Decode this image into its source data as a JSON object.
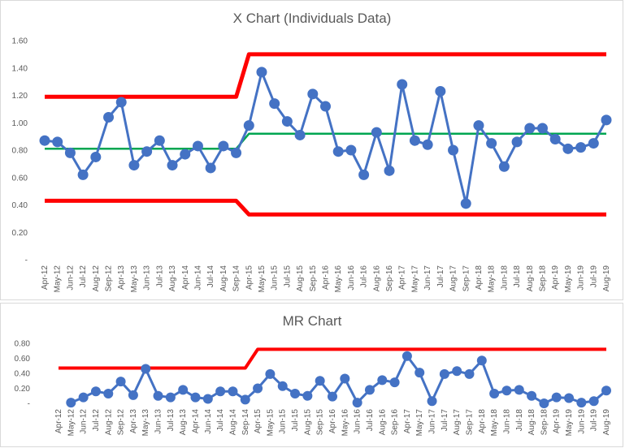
{
  "chart_data": [
    {
      "type": "line",
      "title": "X Chart (Individuals Data)",
      "xlabel": "",
      "ylabel": "",
      "ylim": [
        0,
        1.6
      ],
      "yticks": [
        "-",
        "0.20",
        "0.40",
        "0.60",
        "0.80",
        "1.00",
        "1.20",
        "1.40",
        "1.60"
      ],
      "categories": [
        "Apr-12",
        "May-12",
        "Jun-12",
        "Jul-12",
        "Aug-12",
        "Sep-12",
        "Apr-13",
        "May-13",
        "Jun-13",
        "Jul-13",
        "Aug-13",
        "Apr-14",
        "Jun-14",
        "Jul-14",
        "Aug-14",
        "Sep-14",
        "Apr-15",
        "May-15",
        "Jun-15",
        "Jul-15",
        "Aug-15",
        "Sep-15",
        "Apr-16",
        "May-16",
        "Jun-16",
        "Jul-16",
        "Aug-16",
        "Sep-16",
        "Apr-17",
        "May-17",
        "Jun-17",
        "Jul-17",
        "Aug-17",
        "Sep-17",
        "Apr-18",
        "May-18",
        "Jun-18",
        "Jul-18",
        "Aug-18",
        "Sep-18",
        "Apr-19",
        "May-19",
        "Jun-19",
        "Jul-19",
        "Aug-19"
      ],
      "series": [
        {
          "values": [
            0.87,
            0.86,
            0.78,
            0.62,
            0.75,
            1.04,
            1.15,
            0.69,
            0.79,
            0.87,
            0.69,
            0.77,
            0.83,
            0.67,
            0.83,
            0.78,
            0.98,
            1.37,
            1.14,
            1.01,
            0.91,
            1.21,
            1.12,
            0.79,
            0.8,
            0.62,
            0.93,
            0.65,
            1.28,
            0.87,
            0.84,
            1.23,
            0.8,
            0.41,
            0.98,
            0.85,
            0.68,
            0.86,
            0.96,
            0.96,
            0.88,
            0.81,
            0.82,
            0.85,
            1.02
          ],
          "color": "#4472c4"
        },
        {
          "values": [
            1.19,
            1.19,
            1.19,
            1.19,
            1.19,
            1.19,
            1.19,
            1.19,
            1.19,
            1.19,
            1.19,
            1.19,
            1.19,
            1.19,
            1.19,
            1.19,
            1.5,
            1.5,
            1.5,
            1.5,
            1.5,
            1.5,
            1.5,
            1.5,
            1.5,
            1.5,
            1.5,
            1.5,
            1.5,
            1.5,
            1.5,
            1.5,
            1.5,
            1.5,
            1.5,
            1.5,
            1.5,
            1.5,
            1.5,
            1.5,
            1.5,
            1.5,
            1.5,
            1.5,
            1.5
          ],
          "color": "#ff0000"
        },
        {
          "values": [
            0.81,
            0.81,
            0.81,
            0.81,
            0.81,
            0.81,
            0.81,
            0.81,
            0.81,
            0.81,
            0.81,
            0.81,
            0.81,
            0.81,
            0.81,
            0.81,
            0.92,
            0.92,
            0.92,
            0.92,
            0.92,
            0.92,
            0.92,
            0.92,
            0.92,
            0.92,
            0.92,
            0.92,
            0.92,
            0.92,
            0.92,
            0.92,
            0.92,
            0.92,
            0.92,
            0.92,
            0.92,
            0.92,
            0.92,
            0.92,
            0.92,
            0.92,
            0.92,
            0.92,
            0.92
          ],
          "color": "#00a651"
        },
        {
          "values": [
            0.43,
            0.43,
            0.43,
            0.43,
            0.43,
            0.43,
            0.43,
            0.43,
            0.43,
            0.43,
            0.43,
            0.43,
            0.43,
            0.43,
            0.43,
            0.43,
            0.33,
            0.33,
            0.33,
            0.33,
            0.33,
            0.33,
            0.33,
            0.33,
            0.33,
            0.33,
            0.33,
            0.33,
            0.33,
            0.33,
            0.33,
            0.33,
            0.33,
            0.33,
            0.33,
            0.33,
            0.33,
            0.33,
            0.33,
            0.33,
            0.33,
            0.33,
            0.33,
            0.33,
            0.33
          ],
          "color": "#ff0000"
        }
      ]
    },
    {
      "type": "line",
      "title": "MR Chart",
      "xlabel": "",
      "ylabel": "",
      "ylim": [
        0,
        0.8
      ],
      "yticks": [
        "-",
        "0.20",
        "0.40",
        "0.60",
        "0.80"
      ],
      "categories": [
        "Apr-12",
        "May-12",
        "Jun-12",
        "Jul-12",
        "Aug-12",
        "Sep-12",
        "Apr-13",
        "May-13",
        "Jun-13",
        "Jul-13",
        "Aug-13",
        "Apr-14",
        "Jun-14",
        "Jul-14",
        "Aug-14",
        "Sep-14",
        "Apr-15",
        "May-15",
        "Jun-15",
        "Jul-15",
        "Aug-15",
        "Sep-15",
        "Apr-16",
        "May-16",
        "Jun-16",
        "Jul-16",
        "Aug-16",
        "Sep-16",
        "Apr-17",
        "May-17",
        "Jun-17",
        "Jul-17",
        "Aug-17",
        "Sep-17",
        "Apr-18",
        "May-18",
        "Jun-18",
        "Jul-18",
        "Aug-18",
        "Sep-18",
        "Apr-19",
        "May-19",
        "Jun-19",
        "Jul-19",
        "Aug-19"
      ],
      "series": [
        {
          "values": [
            null,
            0.01,
            0.08,
            0.16,
            0.13,
            0.29,
            0.11,
            0.46,
            0.1,
            0.08,
            0.18,
            0.08,
            0.06,
            0.16,
            0.16,
            0.05,
            0.2,
            0.39,
            0.23,
            0.13,
            0.1,
            0.3,
            0.09,
            0.33,
            0.01,
            0.18,
            0.31,
            0.28,
            0.63,
            0.41,
            0.03,
            0.39,
            0.43,
            0.39,
            0.57,
            0.13,
            0.17,
            0.18,
            0.1,
            0.0,
            0.08,
            0.07,
            0.01,
            0.03,
            0.17
          ],
          "color": "#4472c4"
        },
        {
          "values": [
            0.47,
            0.47,
            0.47,
            0.47,
            0.47,
            0.47,
            0.47,
            0.47,
            0.47,
            0.47,
            0.47,
            0.47,
            0.47,
            0.47,
            0.47,
            0.47,
            0.72,
            0.72,
            0.72,
            0.72,
            0.72,
            0.72,
            0.72,
            0.72,
            0.72,
            0.72,
            0.72,
            0.72,
            0.72,
            0.72,
            0.72,
            0.72,
            0.72,
            0.72,
            0.72,
            0.72,
            0.72,
            0.72,
            0.72,
            0.72,
            0.72,
            0.72,
            0.72,
            0.72,
            0.72
          ],
          "color": "#ff0000"
        }
      ]
    }
  ]
}
